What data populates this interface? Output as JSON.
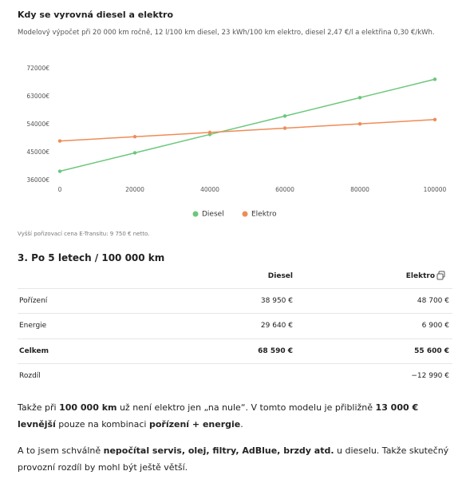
{
  "chart_data": {
    "type": "line",
    "title": "Kdy se vyrovná diesel a elektro",
    "subtitle": "Modelový výpočet při 20 000 km ročně, 12 l/100 km diesel, 23 kWh/100 km elektro, diesel 2,47 €/l a elektřina 0,30 €/kWh.",
    "x": [
      0,
      20000,
      40000,
      60000,
      80000,
      100000
    ],
    "series": [
      {
        "name": "Diesel",
        "color": "#6cc77c",
        "values": [
          38950,
          44878,
          50806,
          56734,
          62662,
          68590
        ]
      },
      {
        "name": "Elektro",
        "color": "#ee8c58",
        "values": [
          48700,
          50080,
          51460,
          52840,
          54220,
          55600
        ]
      }
    ],
    "xlim": [
      0,
      100000
    ],
    "xticks": [
      0,
      20000,
      40000,
      60000,
      80000,
      100000
    ],
    "ylim": [
      36000,
      72000
    ],
    "yticks": [
      {
        "value": 36000,
        "label": "36000€"
      },
      {
        "value": 45000,
        "label": "45000€"
      },
      {
        "value": 54000,
        "label": "54000€"
      },
      {
        "value": 63000,
        "label": "63000€"
      },
      {
        "value": 72000,
        "label": "72000€"
      }
    ],
    "legend": "bottom",
    "grid": false,
    "note": "Vyšší pořizovací cena E-Transitu: 9 750 € netto."
  },
  "section": {
    "title": "3. Po 5 letech / 100 000 km"
  },
  "table": {
    "header": [
      "Diesel",
      "Elektro"
    ],
    "rows": [
      [
        "Pořízení",
        "38 950 €",
        "48 700 €"
      ],
      [
        "Energie",
        "29 640 €",
        "6 900 €"
      ],
      [
        "Celkem",
        "68 590 €",
        "55 600 €"
      ],
      [
        "Rozdíl",
        "",
        "−12 990 €"
      ]
    ]
  },
  "paragraphs": [
    [
      {
        "t": "Takže při "
      },
      {
        "t": "100 000 km",
        "b": true
      },
      {
        "t": " už není elektro jen „na nule“. V tomto modelu je přibližně "
      },
      {
        "t": "13 000 € levnější",
        "b": true
      },
      {
        "t": " pouze na kombinaci "
      },
      {
        "t": "pořízení + energie",
        "b": true
      },
      {
        "t": "."
      }
    ],
    [
      {
        "t": "A to jsem schválně "
      },
      {
        "t": "nepočítal servis, olej, filtry, AdBlue, brzdy atd.",
        "b": true
      },
      {
        "t": " u dieselu. Takže skutečný provozní rozdíl by mohl být ještě větší."
      }
    ]
  ]
}
